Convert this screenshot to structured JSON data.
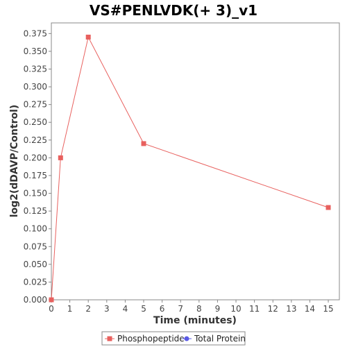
{
  "chart_data": {
    "type": "line",
    "title": "VS#PENLVDK(+ 3)_v1",
    "xlabel": "Time (minutes)",
    "ylabel": "log2(dDAVP/Control)",
    "xlim": [
      0,
      15.6
    ],
    "ylim": [
      0,
      0.39
    ],
    "x_ticks": [
      "0",
      "1",
      "2",
      "3",
      "4",
      "5",
      "6",
      "7",
      "8",
      "9",
      "10",
      "11",
      "12",
      "13",
      "14",
      "15"
    ],
    "y_ticks": [
      "0.000",
      "0.025",
      "0.050",
      "0.075",
      "0.100",
      "0.125",
      "0.150",
      "0.175",
      "0.200",
      "0.225",
      "0.250",
      "0.275",
      "0.300",
      "0.325",
      "0.350",
      "0.375"
    ],
    "grid": false,
    "legend_position": "bottom",
    "series": [
      {
        "name": "Phosphopeptide",
        "color": "#e8605e",
        "marker": "square",
        "x": [
          0,
          0.5,
          2,
          5,
          15
        ],
        "y": [
          0.0,
          0.2,
          0.37,
          0.22,
          0.13
        ]
      },
      {
        "name": "Total Protein",
        "color": "#5a5ae6",
        "marker": "circle",
        "x": [],
        "y": []
      }
    ]
  }
}
